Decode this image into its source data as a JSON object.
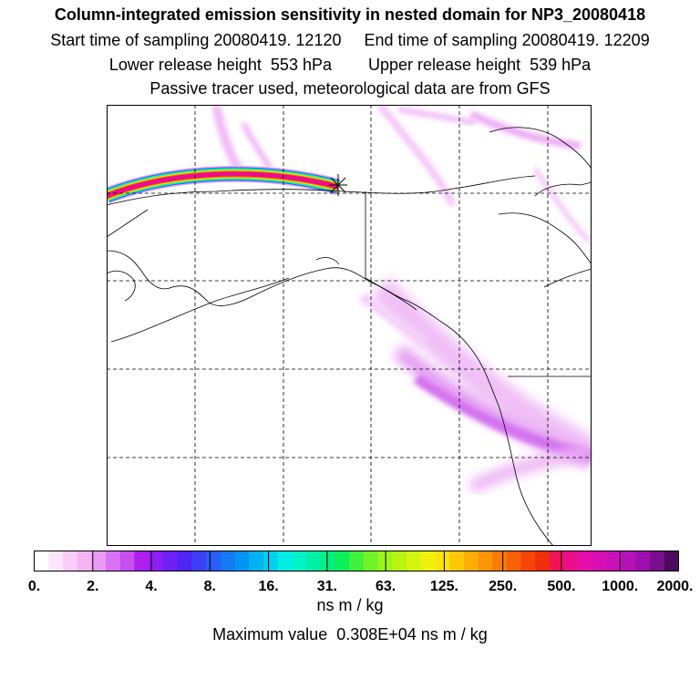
{
  "header": {
    "title": "Column-integrated emission sensitivity in nested domain for NP3_20080418",
    "sampling": "Start time of sampling 20080419. 12120     End time of sampling 20080419. 12209",
    "release": "Lower release height  553 hPa        Upper release height  539 hPa",
    "tracer": "Passive tracer used, meteorological data are from GFS"
  },
  "colorbar": {
    "labels": [
      "0.",
      "2.",
      "4.",
      "8.",
      "16.",
      "31.",
      "63.",
      "125.",
      "250.",
      "500.",
      "1000.",
      "2000."
    ],
    "unit": "ns m / kg",
    "colors": [
      "#ffffff",
      "#fde6fc",
      "#facdf8",
      "#f5b3f5",
      "#e79bf3",
      "#d872f2",
      "#c84ef2",
      "#ad20f0",
      "#8e1ff3",
      "#6f20f5",
      "#4f24f7",
      "#3d3ff8",
      "#2a5cf8",
      "#1479f5",
      "#0095f3",
      "#00b2f2",
      "#00cff0",
      "#00ece5",
      "#00f2c8",
      "#00f0a6",
      "#00ef82",
      "#0cf05c",
      "#40f23a",
      "#70f426",
      "#99f51a",
      "#b8f513",
      "#d5f50f",
      "#eef20c",
      "#fde30a",
      "#fec708",
      "#fdad06",
      "#fc9505",
      "#fa7b05",
      "#f86106",
      "#f54607",
      "#f22d09",
      "#ef1458",
      "#eb0e8c",
      "#e40fa8",
      "#d80fb3",
      "#c910b8",
      "#b610b8",
      "#9c10b0",
      "#7a0e8e",
      "#4d0a5e"
    ]
  },
  "max_value": "Maximum value  0.308E+04 ns m / kg"
}
